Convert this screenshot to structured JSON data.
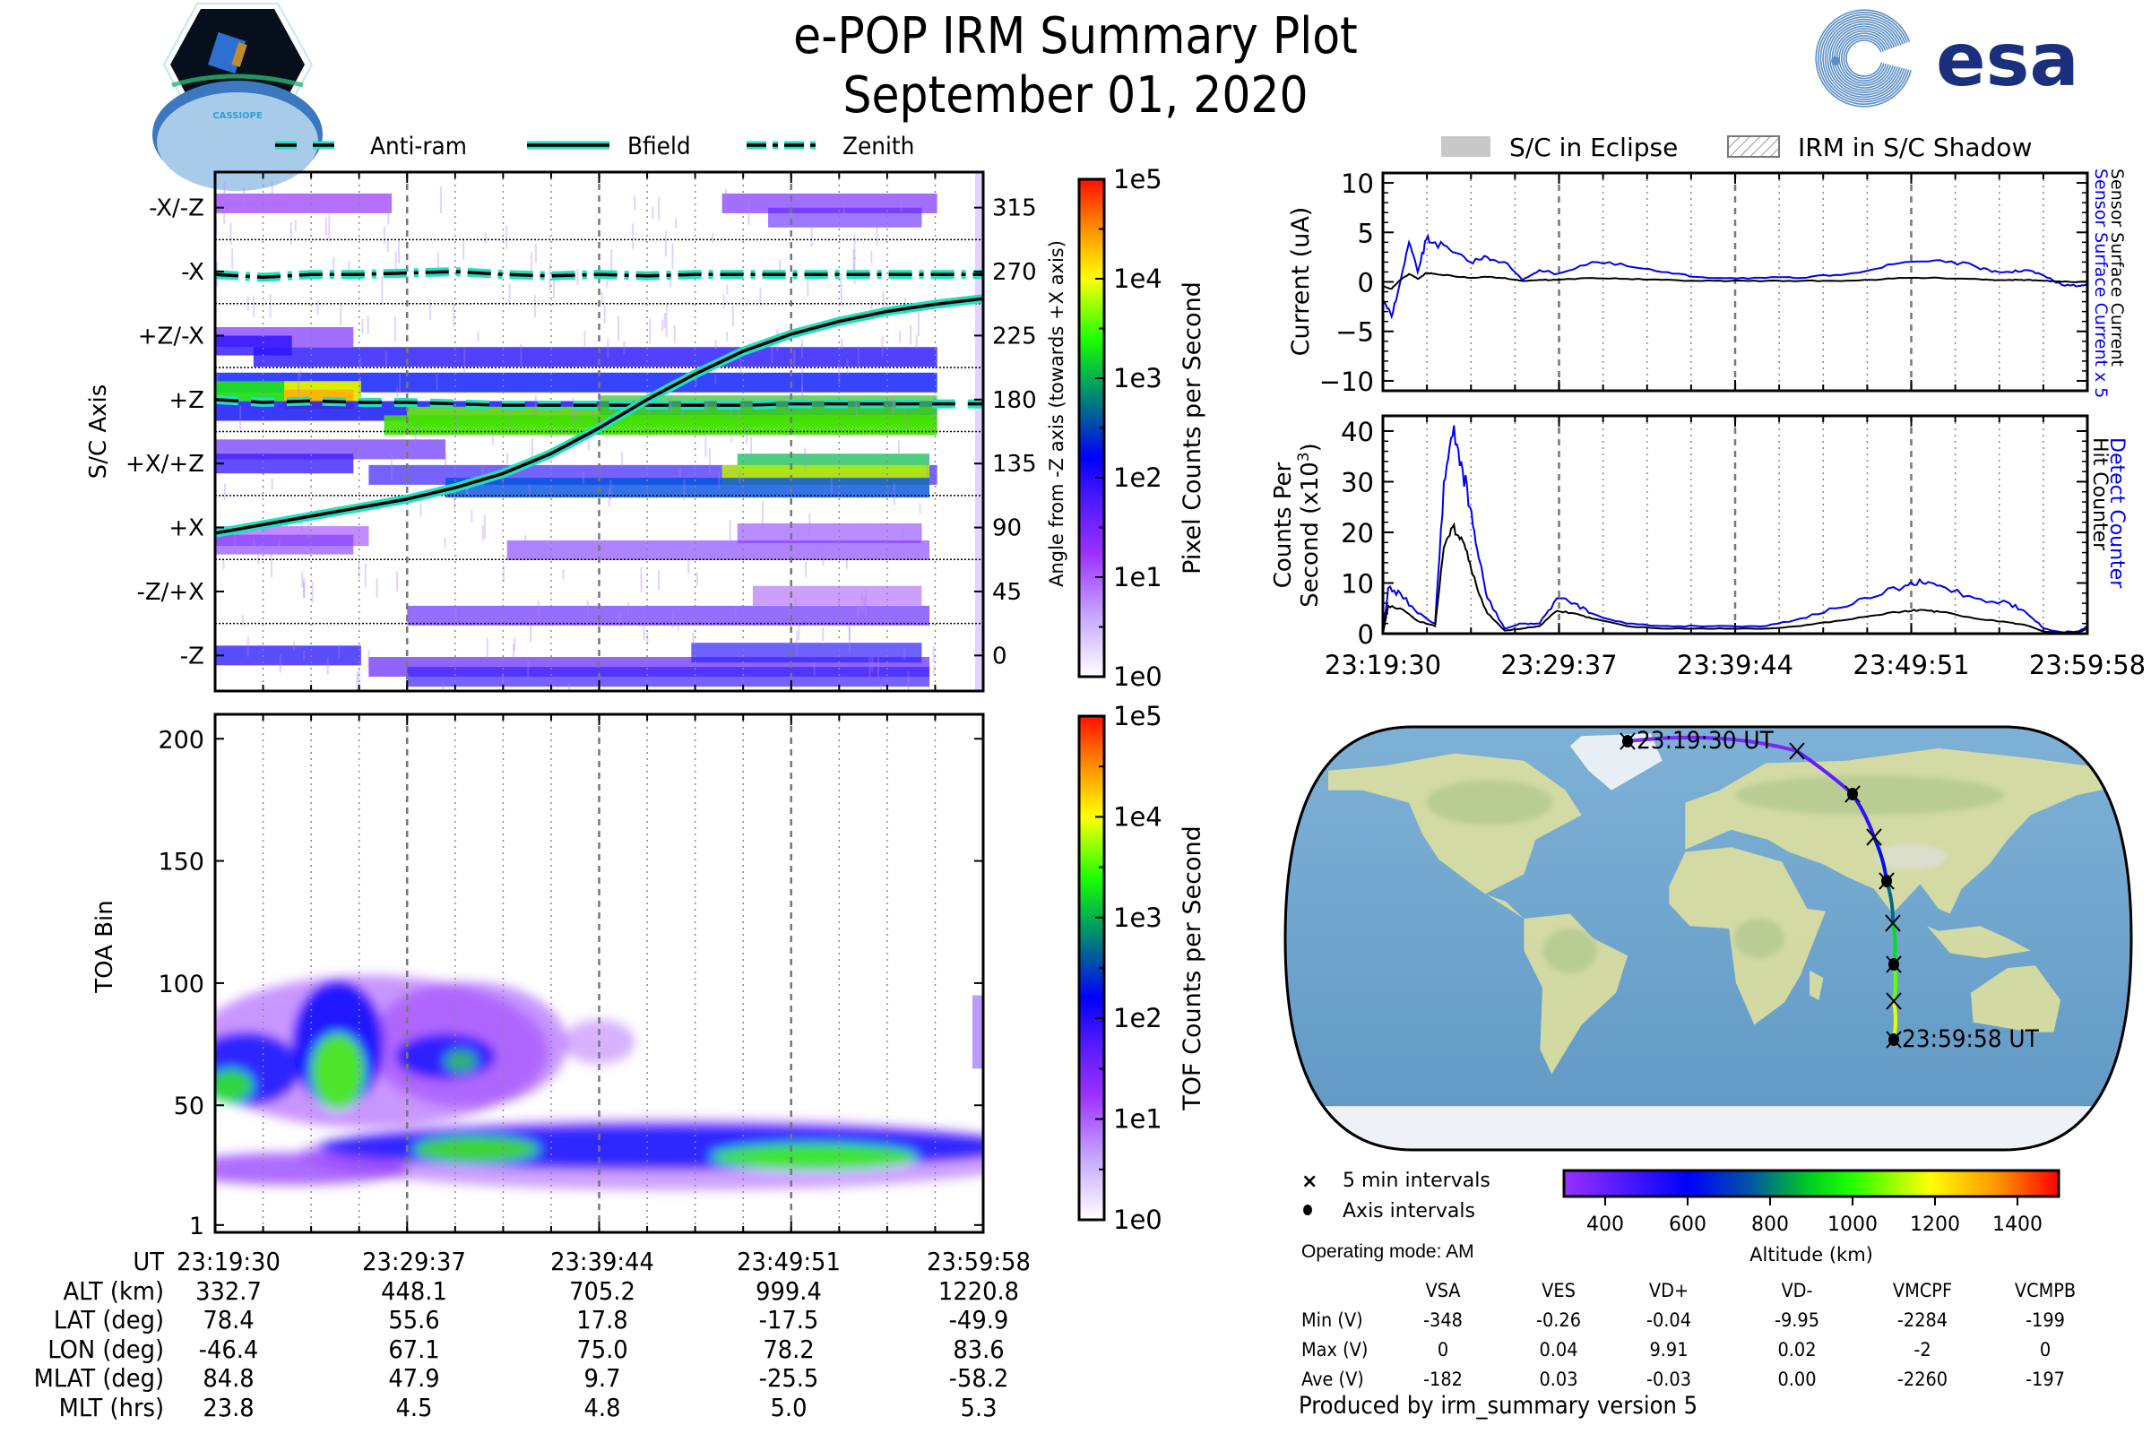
{
  "header": {
    "title": "e-POP IRM Summary Plot",
    "date": "September 01, 2020",
    "left_logo_label": "CASSIOPE",
    "right_logo_label": "esa"
  },
  "colors": {
    "trace_cyan": "#20e0c0",
    "blue_series": "#0000ee",
    "black_series": "#000000",
    "esa_navy": "#1b2f7f",
    "esa_stripes": "#5b8fc7"
  },
  "time_ticks": [
    "23:19:30",
    "23:29:37",
    "23:39:44",
    "23:49:51",
    "23:59:58"
  ],
  "chart_data": [
    {
      "id": "pixel-spectrogram",
      "type": "heatmap",
      "legend": [
        {
          "label": "Anti-ram",
          "style": "dashed"
        },
        {
          "label": "Bfield",
          "style": "solid"
        },
        {
          "label": "Zenith",
          "style": "dashdot"
        }
      ],
      "ylabel": "S/C Axis",
      "y_tick_labels": [
        "-X/-Z",
        "-X",
        "+Z/-X",
        "+Z",
        "+X/+Z",
        "+X",
        "-Z/+X",
        "-Z"
      ],
      "y2label": "Angle from -Z axis (towards +X axis)",
      "y2_ticks": [
        315,
        270,
        225,
        180,
        135,
        90,
        45,
        0
      ],
      "y2lim": [
        -25,
        340
      ],
      "x_ticks": [
        "23:19:30",
        "23:29:37",
        "23:39:44",
        "23:49:51",
        "23:59:58"
      ],
      "colorbar": {
        "label": "Pixel Counts per Second",
        "ticks": [
          "1e0",
          "1e1",
          "1e2",
          "1e3",
          "1e4",
          "1e5"
        ],
        "scale": "log"
      },
      "lines": {
        "zenith_deg": [
          268,
          266,
          268,
          268,
          269,
          270,
          268,
          267,
          268,
          267,
          268,
          268,
          268,
          268,
          268,
          268,
          268
        ],
        "antiram_deg": [
          180,
          178,
          179,
          178,
          178,
          177,
          176,
          176,
          176,
          176,
          176,
          176,
          177,
          177,
          177,
          177,
          177
        ],
        "bfield_deg": [
          86,
          92,
          98,
          104,
          110,
          118,
          128,
          142,
          160,
          180,
          198,
          214,
          226,
          235,
          242,
          247,
          251
        ]
      }
    },
    {
      "id": "sensor-current",
      "type": "line",
      "ylabel": "Current (uA)",
      "ylim": [
        -11,
        11
      ],
      "y_ticks": [
        10,
        5,
        0,
        -5,
        -10
      ],
      "legend": [
        {
          "label": "S/C in Eclipse",
          "style": "gray-fill"
        },
        {
          "label": "IRM in S/C Shadow",
          "style": "hatched"
        }
      ],
      "right_labels": [
        {
          "label": "Sensor Surface Current x 5",
          "color": "#0000ee"
        },
        {
          "label": "Sensor Surface Current",
          "color": "#000000"
        }
      ],
      "x_minutes": [
        0,
        0.5,
        1,
        1.5,
        2,
        2.5,
        3,
        4,
        5,
        6,
        7,
        8,
        9,
        10,
        12,
        14,
        16,
        18,
        20,
        22,
        24,
        26,
        28,
        30,
        32,
        34,
        35,
        36,
        37,
        38,
        39,
        40,
        40.5
      ],
      "series": [
        {
          "name": "Sensor Surface Current x 5",
          "values": [
            -2,
            -3.5,
            0,
            4,
            1,
            4.3,
            4,
            3,
            2,
            2.5,
            2,
            0.2,
            1.2,
            0.8,
            2,
            1.6,
            1.0,
            0.5,
            0.4,
            0.4,
            0.4,
            0.7,
            1.2,
            2.0,
            2.2,
            1.6,
            1.0,
            1.0,
            1.2,
            0.6,
            -0.3,
            -0.4,
            -0.3
          ]
        },
        {
          "name": "Sensor Surface Current",
          "values": [
            -0.4,
            -0.7,
            0.2,
            0.8,
            0.3,
            0.9,
            0.8,
            0.6,
            0.4,
            0.5,
            0.4,
            0.1,
            0.2,
            0.2,
            0.4,
            0.3,
            0.2,
            0.1,
            0.1,
            0.1,
            0.1,
            0.1,
            0.2,
            0.4,
            0.4,
            0.3,
            0.2,
            0.2,
            0.2,
            0.1,
            0.0,
            0.0,
            0.0
          ]
        }
      ]
    },
    {
      "id": "counters",
      "type": "line",
      "ylabel": "Counts Per Second (x10^3)",
      "ylim": [
        0,
        43
      ],
      "y_ticks": [
        0,
        10,
        20,
        30,
        40
      ],
      "x_ticks": [
        "23:19:30",
        "23:29:37",
        "23:39:44",
        "23:49:51",
        "23:59:58"
      ],
      "right_labels": [
        {
          "label": "Detect Counter",
          "color": "#0000ee"
        },
        {
          "label": "Hit Counter",
          "color": "#000000"
        }
      ],
      "x_minutes": [
        0,
        0.3,
        1,
        2,
        3,
        3.5,
        4,
        4.5,
        5,
        5.5,
        6,
        7,
        8,
        9,
        10,
        11,
        12,
        14,
        16,
        18,
        20,
        22,
        24,
        26,
        28,
        30,
        31,
        32,
        34,
        36,
        37,
        38,
        39,
        40,
        40.5
      ],
      "series": [
        {
          "name": "Detect Counter",
          "values": [
            0,
            9,
            8,
            4,
            2,
            30,
            39,
            34,
            25,
            15,
            7,
            1,
            2,
            2,
            7,
            6,
            4,
            2,
            1.5,
            1.5,
            1.5,
            1.5,
            3,
            5,
            7,
            9.5,
            10,
            9.5,
            7,
            6,
            4,
            1,
            0.3,
            0.5,
            1.5
          ]
        },
        {
          "name": "Hit Counter",
          "values": [
            0,
            5.5,
            5,
            2.5,
            1.5,
            17,
            21,
            19,
            14,
            8,
            4,
            0.6,
            1,
            1.5,
            4.5,
            4,
            3,
            1.5,
            1,
            1,
            1,
            1,
            1.5,
            2.5,
            3.5,
            4.5,
            4.7,
            4.3,
            3,
            2.2,
            1.6,
            0.4,
            0.1,
            0.3,
            1.0
          ]
        }
      ]
    },
    {
      "id": "toa-spectrogram",
      "type": "heatmap",
      "ylabel": "TOA Bin",
      "y_ticks": [
        1,
        50,
        100,
        150,
        200
      ],
      "ylim": [
        -2,
        210
      ],
      "x_ticks": [
        "23:19:30",
        "23:29:37",
        "23:39:44",
        "23:49:51",
        "23:59:58"
      ],
      "colorbar": {
        "label": "TOF Counts per Second",
        "ticks": [
          "1e0",
          "1e1",
          "1e2",
          "1e3",
          "1e4",
          "1e5"
        ],
        "scale": "log"
      }
    },
    {
      "id": "orbit-map",
      "type": "scatter",
      "start_label": "23:19:30 UT",
      "end_label": "23:59:58 UT",
      "track": [
        {
          "lat": 78.4,
          "lon": -46.4,
          "alt": 332.7,
          "marker": "dot"
        },
        {
          "lat": 73,
          "lon": 20,
          "alt": 380,
          "marker": "x"
        },
        {
          "lat": 55.6,
          "lon": 67.1,
          "alt": 448.1,
          "marker": "dot"
        },
        {
          "lat": 37,
          "lon": 71,
          "alt": 560,
          "marker": "x"
        },
        {
          "lat": 17.8,
          "lon": 75.0,
          "alt": 705.2,
          "marker": "dot"
        },
        {
          "lat": 0,
          "lon": 77,
          "alt": 850,
          "marker": "x"
        },
        {
          "lat": -17.5,
          "lon": 78.2,
          "alt": 999.4,
          "marker": "dot"
        },
        {
          "lat": -33,
          "lon": 80,
          "alt": 1110,
          "marker": "x"
        },
        {
          "lat": -49.9,
          "lon": 83.6,
          "alt": 1220.8,
          "marker": "dot"
        }
      ],
      "legend": [
        {
          "label": "5 min intervals",
          "marker": "x"
        },
        {
          "label": "Axis intervals",
          "marker": "dot"
        }
      ],
      "colorbar": {
        "label": "Altitude (km)",
        "ticks": [
          400,
          600,
          800,
          1000,
          1200,
          1400
        ],
        "range": [
          300,
          1500
        ]
      }
    }
  ],
  "orbit_table": {
    "row_labels": [
      "UT",
      "ALT (km)",
      "LAT (deg)",
      "LON (deg)",
      "MLAT (deg)",
      "MLT (hrs)"
    ],
    "columns": [
      [
        "23:19:30",
        "332.7",
        "78.4",
        "-46.4",
        "84.8",
        "23.8"
      ],
      [
        "23:29:37",
        "448.1",
        "55.6",
        "67.1",
        "47.9",
        "4.5"
      ],
      [
        "23:39:44",
        "705.2",
        "17.8",
        "75.0",
        "9.7",
        "4.8"
      ],
      [
        "23:49:51",
        "999.4",
        "-17.5",
        "78.2",
        "-25.5",
        "5.0"
      ],
      [
        "23:59:58",
        "1220.8",
        "-49.9",
        "83.6",
        "-58.2",
        "5.3"
      ]
    ]
  },
  "operating_mode": "Operating mode: AM",
  "voltage_table": {
    "headers": [
      "VSA",
      "VES",
      "VD+",
      "VD-",
      "VMCPF",
      "VCMPB"
    ],
    "rows": [
      {
        "label": "Min (V)",
        "values": [
          "-348",
          "-0.26",
          "-0.04",
          "-9.95",
          "-2284",
          "-199"
        ]
      },
      {
        "label": "Max (V)",
        "values": [
          "0",
          "0.04",
          "9.91",
          "0.02",
          "-2",
          "0"
        ]
      },
      {
        "label": "Ave (V)",
        "values": [
          "-182",
          "0.03",
          "-0.03",
          "0.00",
          "-2260",
          "-197"
        ]
      }
    ]
  },
  "footer": "Produced by irm_summary version 5"
}
